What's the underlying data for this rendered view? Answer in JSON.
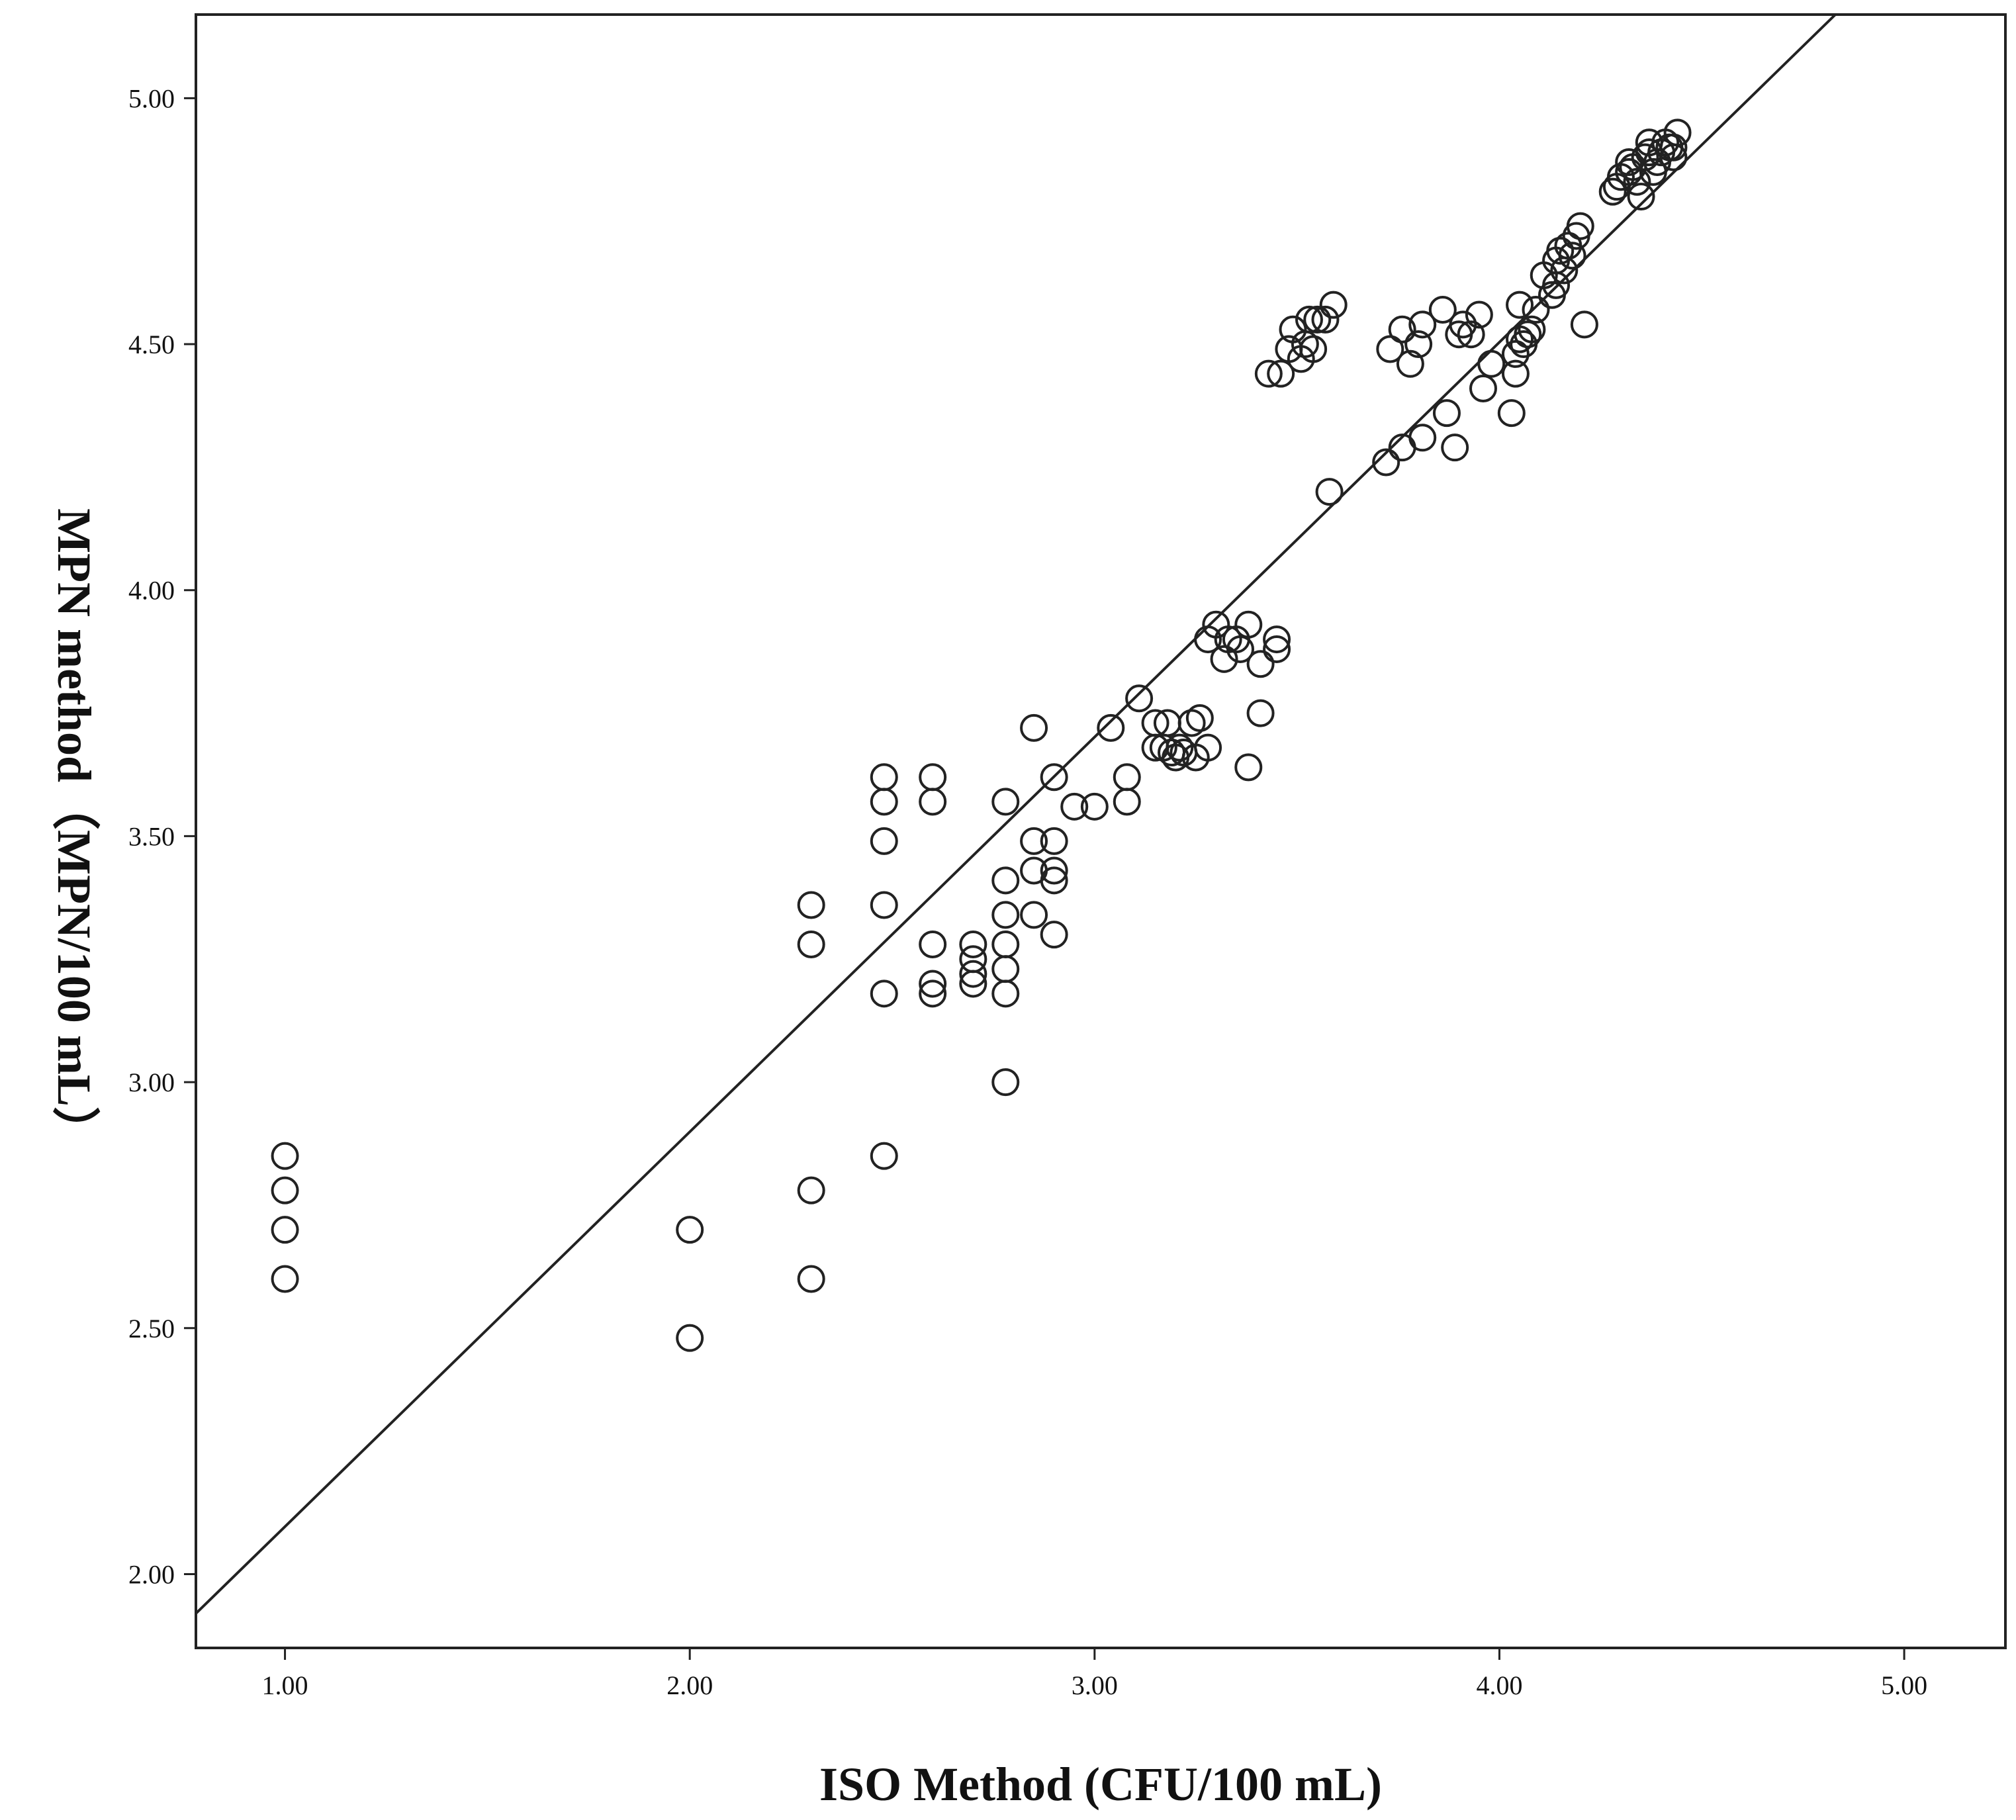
{
  "chart_data": {
    "type": "scatter",
    "title": "",
    "xlabel": "ISO Method (CFU/100 mL)",
    "ylabel": "MPN method（MPN/100 mL）",
    "xlim": [
      0.78,
      5.25
    ],
    "ylim": [
      1.85,
      5.17
    ],
    "x_ticks": [
      "1.00",
      "2.00",
      "3.00",
      "4.00",
      "5.00"
    ],
    "y_ticks": [
      "2.00",
      "2.50",
      "3.00",
      "3.50",
      "4.00",
      "4.50",
      "5.00"
    ],
    "x_tick_values": [
      1,
      2,
      3,
      4,
      5
    ],
    "y_tick_values": [
      2,
      2.5,
      3,
      3.5,
      4,
      4.5,
      5
    ],
    "fit_line": {
      "x1": 0.78,
      "y1": 1.92,
      "x2": 4.83,
      "y2": 5.17
    },
    "points": [
      [
        1.0,
        2.85
      ],
      [
        1.0,
        2.78
      ],
      [
        1.0,
        2.7
      ],
      [
        1.0,
        2.6
      ],
      [
        2.0,
        2.7
      ],
      [
        2.0,
        2.48
      ],
      [
        2.3,
        3.36
      ],
      [
        2.3,
        3.28
      ],
      [
        2.3,
        2.78
      ],
      [
        2.3,
        2.6
      ],
      [
        2.48,
        3.62
      ],
      [
        2.48,
        3.57
      ],
      [
        2.48,
        3.49
      ],
      [
        2.48,
        3.36
      ],
      [
        2.48,
        3.18
      ],
      [
        2.48,
        2.85
      ],
      [
        2.6,
        3.62
      ],
      [
        2.6,
        3.57
      ],
      [
        2.6,
        3.28
      ],
      [
        2.6,
        3.2
      ],
      [
        2.6,
        3.18
      ],
      [
        2.7,
        3.28
      ],
      [
        2.7,
        3.25
      ],
      [
        2.7,
        3.22
      ],
      [
        2.7,
        3.2
      ],
      [
        2.78,
        3.57
      ],
      [
        2.78,
        3.41
      ],
      [
        2.78,
        3.34
      ],
      [
        2.78,
        3.28
      ],
      [
        2.78,
        3.23
      ],
      [
        2.78,
        3.18
      ],
      [
        2.78,
        3.0
      ],
      [
        2.85,
        3.72
      ],
      [
        2.85,
        3.49
      ],
      [
        2.85,
        3.43
      ],
      [
        2.85,
        3.34
      ],
      [
        2.9,
        3.62
      ],
      [
        2.9,
        3.49
      ],
      [
        2.9,
        3.43
      ],
      [
        2.9,
        3.41
      ],
      [
        2.9,
        3.3
      ],
      [
        2.95,
        3.56
      ],
      [
        3.0,
        3.56
      ],
      [
        3.04,
        3.72
      ],
      [
        3.08,
        3.62
      ],
      [
        3.08,
        3.57
      ],
      [
        3.11,
        3.78
      ],
      [
        3.15,
        3.73
      ],
      [
        3.15,
        3.68
      ],
      [
        3.17,
        3.68
      ],
      [
        3.18,
        3.73
      ],
      [
        3.19,
        3.67
      ],
      [
        3.2,
        3.66
      ],
      [
        3.21,
        3.68
      ],
      [
        3.22,
        3.67
      ],
      [
        3.24,
        3.73
      ],
      [
        3.25,
        3.66
      ],
      [
        3.26,
        3.74
      ],
      [
        3.28,
        3.68
      ],
      [
        3.28,
        3.9
      ],
      [
        3.3,
        3.93
      ],
      [
        3.32,
        3.86
      ],
      [
        3.33,
        3.9
      ],
      [
        3.35,
        3.9
      ],
      [
        3.36,
        3.88
      ],
      [
        3.38,
        3.93
      ],
      [
        3.38,
        3.64
      ],
      [
        3.41,
        3.85
      ],
      [
        3.41,
        3.75
      ],
      [
        3.45,
        3.9
      ],
      [
        3.45,
        3.88
      ],
      [
        3.43,
        4.44
      ],
      [
        3.46,
        4.44
      ],
      [
        3.48,
        4.49
      ],
      [
        3.49,
        4.53
      ],
      [
        3.51,
        4.47
      ],
      [
        3.52,
        4.5
      ],
      [
        3.53,
        4.55
      ],
      [
        3.54,
        4.49
      ],
      [
        3.55,
        4.55
      ],
      [
        3.57,
        4.55
      ],
      [
        3.59,
        4.58
      ],
      [
        3.58,
        4.2
      ],
      [
        3.72,
        4.26
      ],
      [
        3.73,
        4.49
      ],
      [
        3.76,
        4.29
      ],
      [
        3.76,
        4.53
      ],
      [
        3.78,
        4.46
      ],
      [
        3.8,
        4.5
      ],
      [
        3.81,
        4.54
      ],
      [
        3.81,
        4.31
      ],
      [
        3.86,
        4.57
      ],
      [
        3.87,
        4.36
      ],
      [
        3.89,
        4.29
      ],
      [
        3.9,
        4.52
      ],
      [
        3.91,
        4.54
      ],
      [
        3.93,
        4.52
      ],
      [
        3.95,
        4.56
      ],
      [
        3.96,
        4.41
      ],
      [
        3.98,
        4.46
      ],
      [
        4.03,
        4.36
      ],
      [
        4.04,
        4.44
      ],
      [
        4.04,
        4.48
      ],
      [
        4.05,
        4.58
      ],
      [
        4.05,
        4.51
      ],
      [
        4.06,
        4.5
      ],
      [
        4.07,
        4.52
      ],
      [
        4.08,
        4.53
      ],
      [
        4.09,
        4.57
      ],
      [
        4.11,
        4.64
      ],
      [
        4.13,
        4.6
      ],
      [
        4.14,
        4.62
      ],
      [
        4.14,
        4.67
      ],
      [
        4.15,
        4.69
      ],
      [
        4.16,
        4.65
      ],
      [
        4.17,
        4.7
      ],
      [
        4.18,
        4.68
      ],
      [
        4.19,
        4.72
      ],
      [
        4.2,
        4.74
      ],
      [
        4.21,
        4.54
      ],
      [
        4.28,
        4.81
      ],
      [
        4.29,
        4.82
      ],
      [
        4.3,
        4.84
      ],
      [
        4.32,
        4.85
      ],
      [
        4.32,
        4.87
      ],
      [
        4.33,
        4.86
      ],
      [
        4.34,
        4.83
      ],
      [
        4.35,
        4.8
      ],
      [
        4.36,
        4.88
      ],
      [
        4.37,
        4.89
      ],
      [
        4.37,
        4.91
      ],
      [
        4.38,
        4.85
      ],
      [
        4.39,
        4.87
      ],
      [
        4.4,
        4.89
      ],
      [
        4.41,
        4.91
      ],
      [
        4.42,
        4.9
      ],
      [
        4.43,
        4.88
      ],
      [
        4.43,
        4.9
      ],
      [
        4.44,
        4.93
      ]
    ]
  }
}
